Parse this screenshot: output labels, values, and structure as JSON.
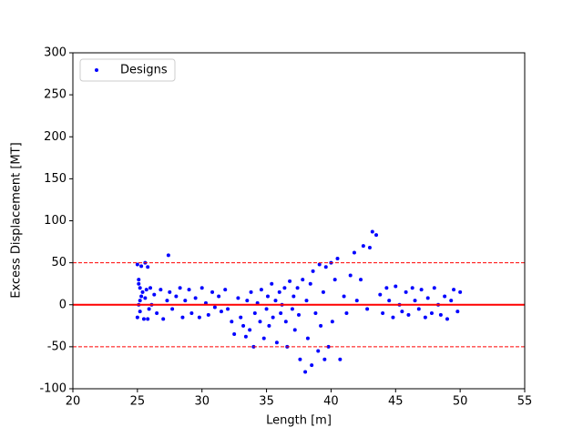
{
  "chart_data": {
    "type": "scatter",
    "xlabel": "Length [m]",
    "ylabel": "Excess Displacement [MT]",
    "xlim": [
      20,
      55
    ],
    "xticks": [
      20,
      25,
      30,
      35,
      40,
      45,
      50,
      55
    ],
    "ylim": [
      -100,
      300
    ],
    "yticks": [
      -100,
      -50,
      0,
      50,
      100,
      150,
      200,
      250,
      300
    ],
    "grid": false,
    "legend": "upper left",
    "hlines": [
      {
        "value": 0,
        "color": "#ff0000",
        "style": "solid"
      },
      {
        "value": 50,
        "color": "#ff0000",
        "style": "dashed"
      },
      {
        "value": -50,
        "color": "#ff0000",
        "style": "dashed"
      }
    ],
    "x": [
      25.0,
      25.1,
      25.2,
      25.3,
      25.1,
      25.2,
      25.0,
      25.3,
      25.1,
      25.2,
      25.4,
      25.5,
      25.6,
      25.7,
      25.8,
      25.9,
      25.6,
      25.8,
      26.0,
      26.1,
      26.3,
      26.5,
      26.8,
      27.0,
      27.3,
      27.4,
      27.5,
      27.7,
      28.0,
      28.3,
      28.5,
      28.7,
      29.0,
      29.2,
      29.5,
      29.8,
      30.0,
      30.3,
      30.5,
      30.8,
      31.0,
      31.3,
      31.5,
      31.8,
      32.0,
      32.3,
      32.5,
      32.8,
      33.0,
      33.2,
      33.4,
      33.5,
      33.7,
      33.8,
      34.0,
      34.1,
      34.3,
      34.5,
      34.6,
      34.8,
      35.0,
      35.1,
      35.2,
      35.4,
      35.5,
      35.7,
      35.8,
      36.0,
      36.1,
      36.2,
      36.4,
      36.5,
      36.6,
      36.8,
      37.0,
      37.1,
      37.2,
      37.4,
      37.5,
      37.6,
      37.8,
      38.0,
      38.1,
      38.2,
      38.4,
      38.5,
      38.6,
      38.8,
      39.0,
      39.1,
      39.2,
      39.4,
      39.5,
      39.6,
      39.8,
      40.0,
      40.1,
      40.3,
      40.5,
      40.7,
      41.0,
      41.2,
      41.5,
      41.8,
      42.0,
      42.3,
      42.5,
      42.8,
      43.0,
      43.2,
      43.5,
      43.8,
      44.0,
      44.3,
      44.5,
      44.8,
      45.0,
      45.3,
      45.5,
      45.8,
      46.0,
      46.3,
      46.5,
      46.8,
      47.0,
      47.3,
      47.5,
      47.8,
      48.0,
      48.3,
      48.5,
      48.8,
      49.0,
      49.3,
      49.5,
      49.8,
      50.0
    ],
    "series": [
      {
        "name": "Designs",
        "color": "#0000ff",
        "values": [
          48,
          30,
          20,
          10,
          0,
          -8,
          -15,
          46,
          25,
          5,
          15,
          -17,
          50,
          18,
          45,
          -5,
          8,
          -17,
          20,
          0,
          12,
          -10,
          18,
          -17,
          5,
          59,
          15,
          -5,
          10,
          20,
          -15,
          5,
          18,
          -10,
          8,
          -15,
          20,
          2,
          -12,
          15,
          -3,
          10,
          -8,
          18,
          -5,
          -20,
          -35,
          8,
          -15,
          -25,
          -38,
          5,
          -30,
          15,
          -50,
          -10,
          2,
          -20,
          18,
          -40,
          -5,
          10,
          -25,
          25,
          -15,
          5,
          -45,
          15,
          -10,
          0,
          20,
          -20,
          -50,
          28,
          -5,
          10,
          -30,
          20,
          -12,
          -65,
          30,
          -80,
          5,
          -40,
          25,
          -72,
          40,
          -10,
          -55,
          48,
          -25,
          15,
          -65,
          45,
          -50,
          50,
          -20,
          30,
          55,
          -65,
          10,
          -10,
          35,
          62,
          5,
          30,
          70,
          -5,
          68,
          87,
          83,
          12,
          -10,
          20,
          5,
          -15,
          22,
          0,
          -8,
          15,
          -12,
          20,
          5,
          -5,
          18,
          -15,
          8,
          -10,
          20,
          0,
          -12,
          10,
          -17,
          5,
          18,
          -8,
          15
        ]
      }
    ]
  }
}
